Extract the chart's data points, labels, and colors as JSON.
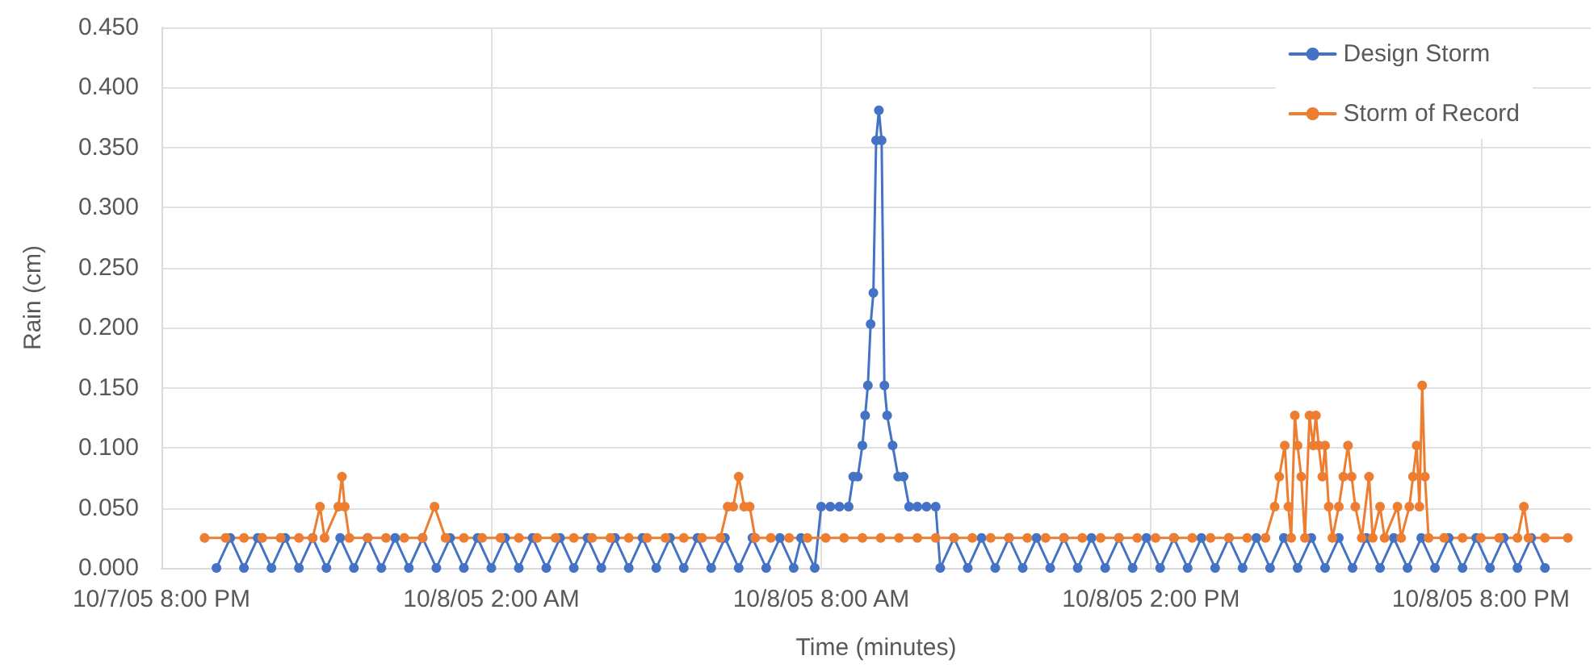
{
  "chart_data": {
    "type": "line",
    "xlabel": "Time (minutes)",
    "ylabel": "Rain (cm)",
    "xlim": [
      "--10-07T20:00",
      "--10-08T22:00"
    ],
    "xticks": [
      {
        "value": "--10-07T20:00",
        "label": "10/7/05 8:00 PM"
      },
      {
        "value": "--10-08T02:00",
        "label": "10/8/05 2:00 AM"
      },
      {
        "value": "--10-08T08:00",
        "label": "10/8/05 8:00 AM"
      },
      {
        "value": "--10-08T14:00",
        "label": "10/8/05 2:00 PM"
      },
      {
        "value": "--10-08T20:00",
        "label": "10/8/05 8:00 PM"
      }
    ],
    "ylim": [
      0,
      0.45
    ],
    "yticks": [
      {
        "value": 0,
        "label": "0.000"
      },
      {
        "value": 0.05,
        "label": "0.050"
      },
      {
        "value": 0.1,
        "label": "0.100"
      },
      {
        "value": 0.15,
        "label": "0.150"
      },
      {
        "value": 0.2,
        "label": "0.200"
      },
      {
        "value": 0.25,
        "label": "0.250"
      },
      {
        "value": 0.3,
        "label": "0.300"
      },
      {
        "value": 0.35,
        "label": "0.350"
      },
      {
        "value": 0.4,
        "label": "0.400"
      },
      {
        "value": 0.45,
        "label": "0.450"
      }
    ],
    "grid": true,
    "legend": "top right",
    "marker": "circle",
    "line_style": "solid",
    "series": [
      {
        "name": "Design Storm",
        "color": "#4472c4",
        "x": [
          "--10-07T21:00",
          "--10-07T21:15",
          "--10-07T21:30",
          "--10-07T21:45",
          "--10-07T22:00",
          "--10-07T22:15",
          "--10-07T22:30",
          "--10-07T22:45",
          "--10-07T23:00",
          "--10-07T23:15",
          "--10-07T23:30",
          "--10-07T23:45",
          "--10-08T00:00",
          "--10-08T00:15",
          "--10-08T00:30",
          "--10-08T00:45",
          "--10-08T01:00",
          "--10-08T01:15",
          "--10-08T01:30",
          "--10-08T01:45",
          "--10-08T02:00",
          "--10-08T02:15",
          "--10-08T02:30",
          "--10-08T02:45",
          "--10-08T03:00",
          "--10-08T03:15",
          "--10-08T03:30",
          "--10-08T03:45",
          "--10-08T04:00",
          "--10-08T04:15",
          "--10-08T04:30",
          "--10-08T04:45",
          "--10-08T05:00",
          "--10-08T05:15",
          "--10-08T05:30",
          "--10-08T05:45",
          "--10-08T06:00",
          "--10-08T06:15",
          "--10-08T06:30",
          "--10-08T06:45",
          "--10-08T07:00",
          "--10-08T07:15",
          "--10-08T07:30",
          "--10-08T07:38",
          "--10-08T07:53",
          "--10-08T08:00",
          "--10-08T08:10",
          "--10-08T08:20",
          "--10-08T08:30",
          "--10-08T08:35",
          "--10-08T08:40",
          "--10-08T08:45",
          "--10-08T08:48",
          "--10-08T08:51",
          "--10-08T08:54",
          "--10-08T08:57",
          "--10-08T09:00",
          "--10-08T09:03",
          "--10-08T09:06",
          "--10-08T09:09",
          "--10-08T09:12",
          "--10-08T09:18",
          "--10-08T09:24",
          "--10-08T09:30",
          "--10-08T09:36",
          "--10-08T09:45",
          "--10-08T09:55",
          "--10-08T10:05",
          "--10-08T10:10",
          "--10-08T10:25",
          "--10-08T10:40",
          "--10-08T10:55",
          "--10-08T11:10",
          "--10-08T11:25",
          "--10-08T11:40",
          "--10-08T11:55",
          "--10-08T12:10",
          "--10-08T12:25",
          "--10-08T12:40",
          "--10-08T12:55",
          "--10-08T13:10",
          "--10-08T13:25",
          "--10-08T13:40",
          "--10-08T13:55",
          "--10-08T14:10",
          "--10-08T14:25",
          "--10-08T14:40",
          "--10-08T14:55",
          "--10-08T15:10",
          "--10-08T15:25",
          "--10-08T15:40",
          "--10-08T15:55",
          "--10-08T16:10",
          "--10-08T16:25",
          "--10-08T16:40",
          "--10-08T16:55",
          "--10-08T17:10",
          "--10-08T17:25",
          "--10-08T17:40",
          "--10-08T17:55",
          "--10-08T18:10",
          "--10-08T18:25",
          "--10-08T18:40",
          "--10-08T18:55",
          "--10-08T19:10",
          "--10-08T19:25",
          "--10-08T19:40",
          "--10-08T19:55",
          "--10-08T20:10",
          "--10-08T20:25",
          "--10-08T20:40",
          "--10-08T20:55",
          "--10-08T21:10"
        ],
        "values": [
          0,
          0.025,
          0,
          0.025,
          0,
          0.025,
          0,
          0.025,
          0,
          0.025,
          0,
          0.025,
          0,
          0.025,
          0,
          0.025,
          0,
          0.025,
          0,
          0.025,
          0,
          0.025,
          0,
          0.025,
          0,
          0.025,
          0,
          0.025,
          0,
          0.025,
          0,
          0.025,
          0,
          0.025,
          0,
          0.025,
          0,
          0.025,
          0,
          0.025,
          0,
          0.025,
          0,
          0.025,
          0,
          0.051,
          0.051,
          0.051,
          0.051,
          0.076,
          0.076,
          0.102,
          0.127,
          0.152,
          0.203,
          0.229,
          0.356,
          0.381,
          0.356,
          0.152,
          0.127,
          0.102,
          0.076,
          0.076,
          0.051,
          0.051,
          0.051,
          0.051,
          0,
          0.025,
          0,
          0.025,
          0,
          0.025,
          0,
          0.025,
          0,
          0.025,
          0,
          0.025,
          0,
          0.025,
          0,
          0.025,
          0,
          0.025,
          0,
          0.025,
          0,
          0.025,
          0,
          0.025,
          0,
          0.025,
          0,
          0.025,
          0,
          0.025,
          0,
          0.025,
          0,
          0.025,
          0,
          0.025,
          0,
          0.025,
          0,
          0.025,
          0,
          0.025,
          0,
          0.025,
          0
        ]
      },
      {
        "name": "Storm of Record",
        "color": "#ed7d31",
        "x": [
          "--10-07T20:47",
          "--10-07T21:10",
          "--10-07T21:30",
          "--10-07T21:50",
          "--10-07T22:10",
          "--10-07T22:30",
          "--10-07T22:45",
          "--10-07T22:53",
          "--10-07T22:58",
          "--10-07T23:13",
          "--10-07T23:17",
          "--10-07T23:20",
          "--10-07T23:25",
          "--10-07T23:45",
          "--10-08T00:05",
          "--10-08T00:25",
          "--10-08T00:45",
          "--10-08T00:58",
          "--10-08T01:10",
          "--10-08T01:30",
          "--10-08T01:50",
          "--10-08T02:10",
          "--10-08T02:30",
          "--10-08T02:50",
          "--10-08T03:10",
          "--10-08T03:30",
          "--10-08T03:50",
          "--10-08T04:10",
          "--10-08T04:30",
          "--10-08T04:50",
          "--10-08T05:10",
          "--10-08T05:30",
          "--10-08T05:50",
          "--10-08T06:10",
          "--10-08T06:18",
          "--10-08T06:24",
          "--10-08T06:30",
          "--10-08T06:36",
          "--10-08T06:42",
          "--10-08T06:48",
          "--10-08T07:05",
          "--10-08T07:25",
          "--10-08T07:45",
          "--10-08T08:05",
          "--10-08T08:25",
          "--10-08T08:45",
          "--10-08T09:05",
          "--10-08T09:25",
          "--10-08T09:45",
          "--10-08T10:05",
          "--10-08T10:25",
          "--10-08T10:45",
          "--10-08T11:05",
          "--10-08T11:25",
          "--10-08T11:45",
          "--10-08T12:05",
          "--10-08T12:25",
          "--10-08T12:45",
          "--10-08T13:05",
          "--10-08T13:25",
          "--10-08T13:45",
          "--10-08T14:05",
          "--10-08T14:25",
          "--10-08T14:45",
          "--10-08T15:05",
          "--10-08T15:25",
          "--10-08T15:45",
          "--10-08T16:05",
          "--10-08T16:15",
          "--10-08T16:20",
          "--10-08T16:26",
          "--10-08T16:30",
          "--10-08T16:33",
          "--10-08T16:37",
          "--10-08T16:40",
          "--10-08T16:44",
          "--10-08T16:48",
          "--10-08T16:53",
          "--10-08T16:57",
          "--10-08T17:00",
          "--10-08T17:03",
          "--10-08T17:07",
          "--10-08T17:10",
          "--10-08T17:14",
          "--10-08T17:18",
          "--10-08T17:25",
          "--10-08T17:30",
          "--10-08T17:35",
          "--10-08T17:39",
          "--10-08T17:43",
          "--10-08T17:50",
          "--10-08T17:58",
          "--10-08T18:02",
          "--10-08T18:10",
          "--10-08T18:15",
          "--10-08T18:29",
          "--10-08T18:33",
          "--10-08T18:42",
          "--10-08T18:46",
          "--10-08T18:50",
          "--10-08T18:53",
          "--10-08T18:56",
          "--10-08T18:59",
          "--10-08T19:03",
          "--10-08T19:20",
          "--10-08T19:40",
          "--10-08T20:00",
          "--10-08T20:20",
          "--10-08T20:40",
          "--10-08T20:47",
          "--10-08T20:52",
          "--10-08T21:10",
          "--10-08T21:35"
        ],
        "values": [
          0.025,
          0.025,
          0.025,
          0.025,
          0.025,
          0.025,
          0.025,
          0.051,
          0.025,
          0.051,
          0.076,
          0.051,
          0.025,
          0.025,
          0.025,
          0.025,
          0.025,
          0.051,
          0.025,
          0.025,
          0.025,
          0.025,
          0.025,
          0.025,
          0.025,
          0.025,
          0.025,
          0.025,
          0.025,
          0.025,
          0.025,
          0.025,
          0.025,
          0.025,
          0.051,
          0.051,
          0.076,
          0.051,
          0.051,
          0.025,
          0.025,
          0.025,
          0.025,
          0.025,
          0.025,
          0.025,
          0.025,
          0.025,
          0.025,
          0.025,
          0.025,
          0.025,
          0.025,
          0.025,
          0.025,
          0.025,
          0.025,
          0.025,
          0.025,
          0.025,
          0.025,
          0.025,
          0.025,
          0.025,
          0.025,
          0.025,
          0.025,
          0.025,
          0.051,
          0.076,
          0.102,
          0.051,
          0.025,
          0.127,
          0.102,
          0.076,
          0.025,
          0.127,
          0.102,
          0.127,
          0.102,
          0.076,
          0.102,
          0.051,
          0.025,
          0.051,
          0.076,
          0.102,
          0.076,
          0.051,
          0.025,
          0.076,
          0.025,
          0.051,
          0.025,
          0.051,
          0.025,
          0.051,
          0.076,
          0.102,
          0.051,
          0.152,
          0.076,
          0.025,
          0.025,
          0.025,
          0.025,
          0.025,
          0.025,
          0.051,
          0.025,
          0.025,
          0.025
        ]
      }
    ]
  }
}
